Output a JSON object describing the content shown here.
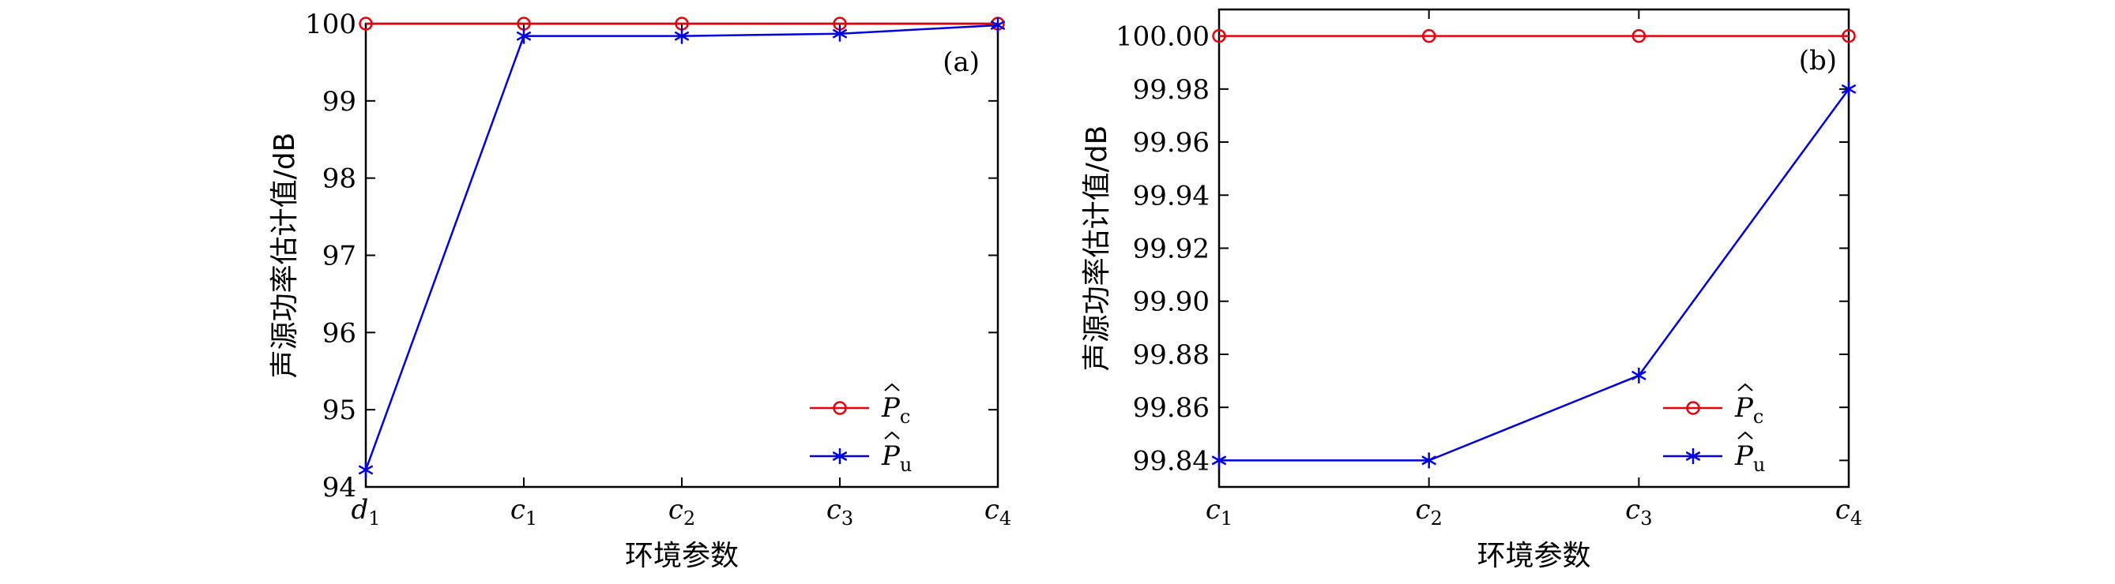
{
  "chart_data": [
    {
      "type": "line",
      "panel_label": "(a)",
      "xlabel": "环境参数",
      "ylabel": "声源功率估计值/dB",
      "categories": [
        "d1",
        "c1",
        "c2",
        "c3",
        "c4"
      ],
      "category_labels": [
        {
          "base": "d",
          "sub": "1"
        },
        {
          "base": "c",
          "sub": "1"
        },
        {
          "base": "c",
          "sub": "2"
        },
        {
          "base": "c",
          "sub": "3"
        },
        {
          "base": "c",
          "sub": "4"
        }
      ],
      "ylim": [
        94,
        100
      ],
      "yticks": [
        "94",
        "95",
        "96",
        "97",
        "98",
        "99",
        "100"
      ],
      "ytick_values": [
        94,
        95,
        96,
        97,
        98,
        99,
        100
      ],
      "legend_position": "bottom-right",
      "series": [
        {
          "name": "P̂c",
          "legend_base": "P",
          "legend_sub": "c",
          "color": "#e8000b",
          "marker": "circle",
          "values": [
            100.0,
            100.0,
            100.0,
            100.0,
            100.0
          ]
        },
        {
          "name": "P̂u",
          "legend_base": "P",
          "legend_sub": "u",
          "color": "#0000e0",
          "marker": "asterisk",
          "values": [
            94.22,
            99.84,
            99.84,
            99.87,
            99.98
          ]
        }
      ]
    },
    {
      "type": "line",
      "panel_label": "(b)",
      "xlabel": "环境参数",
      "ylabel": "声源功率估计值/dB",
      "categories": [
        "c1",
        "c2",
        "c3",
        "c4"
      ],
      "category_labels": [
        {
          "base": "c",
          "sub": "1"
        },
        {
          "base": "c",
          "sub": "2"
        },
        {
          "base": "c",
          "sub": "3"
        },
        {
          "base": "c",
          "sub": "4"
        }
      ],
      "ylim": [
        99.83,
        100.01
      ],
      "yticks": [
        "99.84",
        "99.86",
        "99.88",
        "99.90",
        "99.92",
        "99.94",
        "99.96",
        "99.98",
        "100.00"
      ],
      "ytick_values": [
        99.84,
        99.86,
        99.88,
        99.9,
        99.92,
        99.94,
        99.96,
        99.98,
        100.0
      ],
      "legend_position": "bottom-right",
      "series": [
        {
          "name": "P̂c",
          "legend_base": "P",
          "legend_sub": "c",
          "color": "#e8000b",
          "marker": "circle",
          "values": [
            100.0,
            100.0,
            100.0,
            100.0
          ]
        },
        {
          "name": "P̂u",
          "legend_base": "P",
          "legend_sub": "u",
          "color": "#0000e0",
          "marker": "asterisk",
          "values": [
            99.84,
            99.84,
            99.872,
            99.98
          ]
        }
      ]
    }
  ]
}
